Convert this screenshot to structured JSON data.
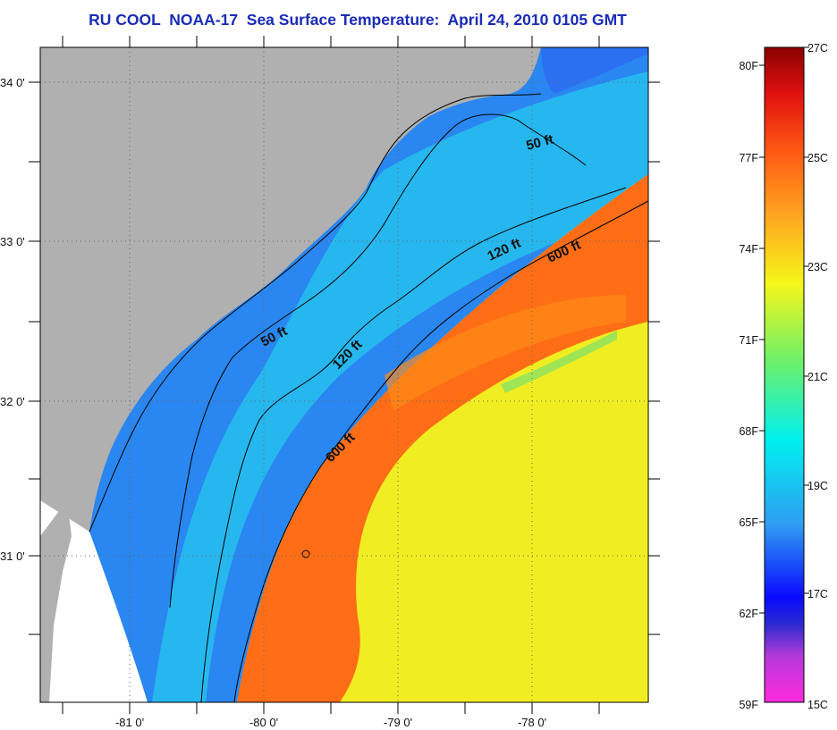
{
  "title": "RU COOL  NOAA-17  Sea Surface Temperature:  April 24, 2010 0105 GMT",
  "map": {
    "lat_labels": [
      "34 0'",
      "33 0'",
      "32 0'",
      "31 0'"
    ],
    "lon_labels": [
      "-81 0'",
      "-80 0'",
      "-79 0'",
      "-78 0'"
    ],
    "depth_labels": [
      "50 ft",
      "50 ft",
      "120 ft",
      "120 ft",
      "600 ft",
      "600 ft"
    ],
    "colors": {
      "land": "#b0b0b0",
      "no_data": "#ffffff",
      "coastal_blue": "#2a7ff0",
      "shelf_cyan": "#27c6ee",
      "gulf_stream_orange": "#ff6a12",
      "offshore_yellow": "#f0f020"
    }
  },
  "colorbar": {
    "fahrenheit": [
      "80F",
      "77F",
      "74F",
      "71F",
      "68F",
      "65F",
      "62F",
      "59F"
    ],
    "celsius": [
      "27C",
      "25C",
      "23C",
      "21C",
      "19C",
      "17C",
      "15C"
    ]
  }
}
